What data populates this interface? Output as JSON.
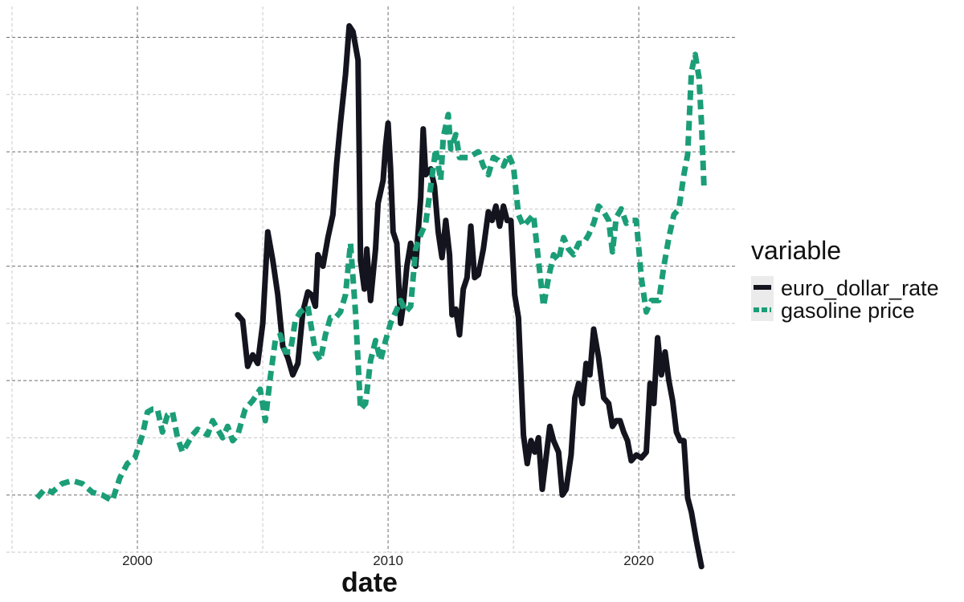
{
  "chart_data": {
    "type": "line",
    "title": "",
    "xlabel": "date",
    "ylabel": "",
    "xlim": [
      1995.0,
      2024.0
    ],
    "ylim": [
      0.0,
      9.4
    ],
    "x_ticks": [
      2000,
      2010,
      2020
    ],
    "x_tick_labels": [
      "2000",
      "2010",
      "2020"
    ],
    "y_major_gridlines": [
      1,
      3,
      5,
      7,
      9
    ],
    "y_minor_gridlines": [
      0,
      2,
      4,
      6,
      8
    ],
    "x_minor_gridlines": [
      1995,
      2005,
      2015
    ],
    "legend": {
      "title": "variable",
      "position": "right"
    },
    "series": [
      {
        "name": "euro_dollar_rate",
        "color": "#14141e",
        "style": "solid",
        "points": [
          [
            2004.0,
            4.15
          ],
          [
            2004.2,
            4.05
          ],
          [
            2004.4,
            3.25
          ],
          [
            2004.6,
            3.45
          ],
          [
            2004.8,
            3.3
          ],
          [
            2005.0,
            4.0
          ],
          [
            2005.2,
            5.6
          ],
          [
            2005.4,
            5.1
          ],
          [
            2005.6,
            4.5
          ],
          [
            2005.8,
            3.6
          ],
          [
            2006.0,
            3.4
          ],
          [
            2006.2,
            3.1
          ],
          [
            2006.4,
            3.3
          ],
          [
            2006.6,
            4.2
          ],
          [
            2006.8,
            4.55
          ],
          [
            2006.95,
            4.5
          ],
          [
            2007.1,
            4.3
          ],
          [
            2007.2,
            5.2
          ],
          [
            2007.4,
            5.0
          ],
          [
            2007.6,
            5.5
          ],
          [
            2007.8,
            5.9
          ],
          [
            2007.95,
            6.8
          ],
          [
            2008.1,
            7.5
          ],
          [
            2008.3,
            8.35
          ],
          [
            2008.45,
            9.2
          ],
          [
            2008.6,
            9.1
          ],
          [
            2008.8,
            8.6
          ],
          [
            2008.9,
            5.1
          ],
          [
            2009.05,
            4.6
          ],
          [
            2009.15,
            5.3
          ],
          [
            2009.3,
            4.4
          ],
          [
            2009.5,
            5.3
          ],
          [
            2009.6,
            6.1
          ],
          [
            2009.8,
            6.5
          ],
          [
            2009.9,
            7.1
          ],
          [
            2010.0,
            7.5
          ],
          [
            2010.1,
            6.7
          ],
          [
            2010.2,
            5.6
          ],
          [
            2010.35,
            5.4
          ],
          [
            2010.5,
            4.0
          ],
          [
            2010.6,
            4.3
          ],
          [
            2010.75,
            5.0
          ],
          [
            2010.9,
            5.4
          ],
          [
            2011.1,
            5.0
          ],
          [
            2011.3,
            6.2
          ],
          [
            2011.4,
            7.4
          ],
          [
            2011.5,
            6.6
          ],
          [
            2011.7,
            6.7
          ],
          [
            2011.85,
            6.4
          ],
          [
            2012.0,
            5.6
          ],
          [
            2012.15,
            5.15
          ],
          [
            2012.3,
            5.8
          ],
          [
            2012.45,
            5.2
          ],
          [
            2012.55,
            4.15
          ],
          [
            2012.7,
            4.25
          ],
          [
            2012.85,
            3.8
          ],
          [
            2013.0,
            4.6
          ],
          [
            2013.15,
            4.8
          ],
          [
            2013.3,
            5.7
          ],
          [
            2013.45,
            4.8
          ],
          [
            2013.6,
            4.85
          ],
          [
            2013.8,
            5.3
          ],
          [
            2014.0,
            5.95
          ],
          [
            2014.15,
            5.8
          ],
          [
            2014.3,
            6.05
          ],
          [
            2014.45,
            5.7
          ],
          [
            2014.6,
            6.05
          ],
          [
            2014.75,
            5.8
          ],
          [
            2014.9,
            5.8
          ],
          [
            2015.05,
            4.5
          ],
          [
            2015.2,
            4.1
          ],
          [
            2015.4,
            2.05
          ],
          [
            2015.55,
            1.55
          ],
          [
            2015.7,
            1.95
          ],
          [
            2015.85,
            1.75
          ],
          [
            2016.0,
            2.0
          ],
          [
            2016.15,
            1.1
          ],
          [
            2016.3,
            1.65
          ],
          [
            2016.45,
            2.2
          ],
          [
            2016.6,
            1.95
          ],
          [
            2016.8,
            1.75
          ],
          [
            2016.95,
            1.0
          ],
          [
            2017.1,
            1.1
          ],
          [
            2017.3,
            1.7
          ],
          [
            2017.45,
            2.7
          ],
          [
            2017.6,
            2.95
          ],
          [
            2017.75,
            2.6
          ],
          [
            2017.9,
            3.3
          ],
          [
            2018.05,
            3.1
          ],
          [
            2018.2,
            3.9
          ],
          [
            2018.4,
            3.4
          ],
          [
            2018.6,
            2.7
          ],
          [
            2018.8,
            2.6
          ],
          [
            2018.95,
            2.2
          ],
          [
            2019.1,
            2.3
          ],
          [
            2019.25,
            2.3
          ],
          [
            2019.4,
            2.1
          ],
          [
            2019.55,
            1.95
          ],
          [
            2019.7,
            1.6
          ],
          [
            2019.9,
            1.7
          ],
          [
            2020.1,
            1.65
          ],
          [
            2020.3,
            1.75
          ],
          [
            2020.45,
            2.95
          ],
          [
            2020.6,
            2.6
          ],
          [
            2020.75,
            3.75
          ],
          [
            2020.9,
            3.1
          ],
          [
            2021.05,
            3.5
          ],
          [
            2021.2,
            3.0
          ],
          [
            2021.35,
            2.65
          ],
          [
            2021.5,
            2.1
          ],
          [
            2021.65,
            1.95
          ],
          [
            2021.8,
            1.95
          ],
          [
            2021.95,
            0.95
          ],
          [
            2022.1,
            0.7
          ],
          [
            2022.3,
            0.2
          ],
          [
            2022.5,
            -0.25
          ]
        ]
      },
      {
        "name": "gasoline price",
        "color": "#1b9e77",
        "style": "dashed",
        "points": [
          [
            1996.0,
            0.95
          ],
          [
            1996.3,
            1.1
          ],
          [
            1996.6,
            1.05
          ],
          [
            1997.0,
            1.2
          ],
          [
            1997.4,
            1.25
          ],
          [
            1997.8,
            1.2
          ],
          [
            1998.2,
            1.05
          ],
          [
            1998.6,
            1.0
          ],
          [
            1999.0,
            0.9
          ],
          [
            1999.3,
            1.3
          ],
          [
            1999.6,
            1.55
          ],
          [
            1999.9,
            1.65
          ],
          [
            2000.2,
            2.05
          ],
          [
            2000.4,
            2.45
          ],
          [
            2000.6,
            2.5
          ],
          [
            2000.8,
            2.5
          ],
          [
            2001.0,
            2.1
          ],
          [
            2001.2,
            2.4
          ],
          [
            2001.4,
            2.45
          ],
          [
            2001.6,
            2.0
          ],
          [
            2001.8,
            1.75
          ],
          [
            2002.0,
            1.9
          ],
          [
            2002.2,
            2.05
          ],
          [
            2002.4,
            2.15
          ],
          [
            2002.6,
            2.1
          ],
          [
            2002.8,
            2.05
          ],
          [
            2003.0,
            2.3
          ],
          [
            2003.2,
            2.15
          ],
          [
            2003.4,
            2.0
          ],
          [
            2003.6,
            2.2
          ],
          [
            2003.8,
            1.95
          ],
          [
            2004.0,
            2.05
          ],
          [
            2004.3,
            2.5
          ],
          [
            2004.6,
            2.65
          ],
          [
            2004.9,
            2.85
          ],
          [
            2005.1,
            2.3
          ],
          [
            2005.3,
            3.05
          ],
          [
            2005.5,
            3.7
          ],
          [
            2005.7,
            3.8
          ],
          [
            2005.9,
            3.5
          ],
          [
            2006.1,
            3.5
          ],
          [
            2006.3,
            4.05
          ],
          [
            2006.5,
            4.2
          ],
          [
            2006.8,
            4.3
          ],
          [
            2006.95,
            3.9
          ],
          [
            2007.1,
            3.5
          ],
          [
            2007.3,
            3.35
          ],
          [
            2007.5,
            3.8
          ],
          [
            2007.7,
            4.1
          ],
          [
            2007.9,
            4.1
          ],
          [
            2008.1,
            4.2
          ],
          [
            2008.3,
            4.5
          ],
          [
            2008.5,
            5.4
          ],
          [
            2008.7,
            4.2
          ],
          [
            2008.9,
            2.5
          ],
          [
            2009.1,
            2.6
          ],
          [
            2009.3,
            3.35
          ],
          [
            2009.5,
            3.7
          ],
          [
            2009.7,
            3.35
          ],
          [
            2009.9,
            3.7
          ],
          [
            2010.1,
            4.0
          ],
          [
            2010.3,
            4.2
          ],
          [
            2010.5,
            4.4
          ],
          [
            2010.7,
            4.2
          ],
          [
            2010.9,
            4.3
          ],
          [
            2011.1,
            5.3
          ],
          [
            2011.3,
            5.55
          ],
          [
            2011.5,
            5.75
          ],
          [
            2011.7,
            6.4
          ],
          [
            2011.9,
            7.05
          ],
          [
            2012.1,
            6.5
          ],
          [
            2012.2,
            7.25
          ],
          [
            2012.4,
            7.65
          ],
          [
            2012.5,
            7.05
          ],
          [
            2012.7,
            7.3
          ],
          [
            2012.85,
            6.9
          ],
          [
            2013.0,
            6.9
          ],
          [
            2013.2,
            6.9
          ],
          [
            2013.4,
            6.95
          ],
          [
            2013.6,
            7.0
          ],
          [
            2013.8,
            6.75
          ],
          [
            2014.0,
            6.6
          ],
          [
            2014.2,
            6.9
          ],
          [
            2014.4,
            6.85
          ],
          [
            2014.6,
            6.75
          ],
          [
            2014.8,
            6.95
          ],
          [
            2015.0,
            6.75
          ],
          [
            2015.2,
            5.9
          ],
          [
            2015.4,
            5.7
          ],
          [
            2015.6,
            5.8
          ],
          [
            2015.8,
            5.9
          ],
          [
            2016.0,
            5.1
          ],
          [
            2016.2,
            4.3
          ],
          [
            2016.4,
            4.8
          ],
          [
            2016.6,
            5.2
          ],
          [
            2016.8,
            5.1
          ],
          [
            2017.0,
            5.5
          ],
          [
            2017.2,
            5.3
          ],
          [
            2017.4,
            5.2
          ],
          [
            2017.6,
            5.4
          ],
          [
            2017.8,
            5.4
          ],
          [
            2018.0,
            5.55
          ],
          [
            2018.2,
            5.75
          ],
          [
            2018.4,
            6.05
          ],
          [
            2018.6,
            5.95
          ],
          [
            2018.8,
            5.8
          ],
          [
            2018.95,
            5.25
          ],
          [
            2019.1,
            5.85
          ],
          [
            2019.3,
            6.0
          ],
          [
            2019.5,
            5.75
          ],
          [
            2019.7,
            5.8
          ],
          [
            2019.9,
            5.8
          ],
          [
            2020.1,
            4.8
          ],
          [
            2020.3,
            4.2
          ],
          [
            2020.5,
            4.4
          ],
          [
            2020.8,
            4.4
          ],
          [
            2021.0,
            5.0
          ],
          [
            2021.2,
            5.5
          ],
          [
            2021.4,
            5.9
          ],
          [
            2021.6,
            6.0
          ],
          [
            2021.8,
            6.6
          ],
          [
            2021.95,
            6.95
          ],
          [
            2022.1,
            8.4
          ],
          [
            2022.25,
            8.7
          ],
          [
            2022.4,
            8.3
          ],
          [
            2022.5,
            7.5
          ],
          [
            2022.6,
            6.4
          ]
        ]
      }
    ]
  }
}
